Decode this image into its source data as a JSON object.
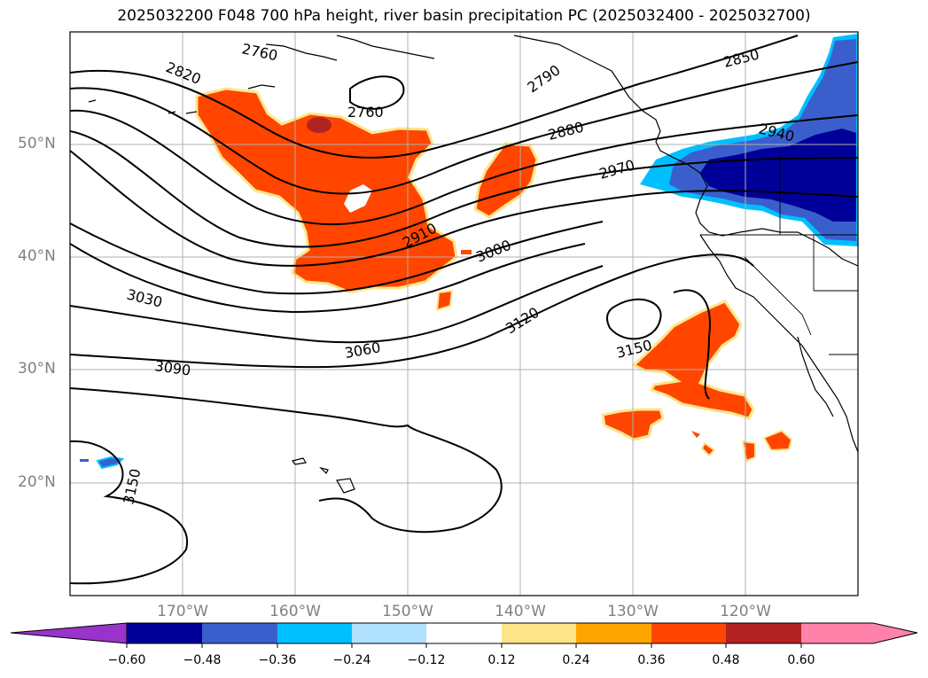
{
  "title": "2025032200 F048 700 hPa height, river basin precipitation PC (2025032400 - 2025032700)",
  "lat_labels": [
    "50°N",
    "40°N",
    "30°N",
    "20°N"
  ],
  "lon_labels": [
    "170°W",
    "160°W",
    "150°W",
    "140°W",
    "130°W",
    "120°W"
  ],
  "contour_labels": [
    "2760",
    "2820",
    "2760",
    "2790",
    "2850",
    "2880",
    "2940",
    "2970",
    "2910",
    "3000",
    "3030",
    "3060",
    "3120",
    "3090",
    "3150",
    "3150"
  ],
  "colorbar": {
    "ticks": [
      "−0.60",
      "−0.48",
      "−0.36",
      "−0.24",
      "−0.12",
      "0.12",
      "0.24",
      "0.36",
      "0.48",
      "0.60"
    ],
    "colors": [
      "#9933cc",
      "#000099",
      "#3a5fcd",
      "#00bfff",
      "#b0e2ff",
      "#ffffff",
      "#fde68a",
      "#ffa500",
      "#ff4500",
      "#b22222",
      "#ff82ab"
    ]
  }
}
